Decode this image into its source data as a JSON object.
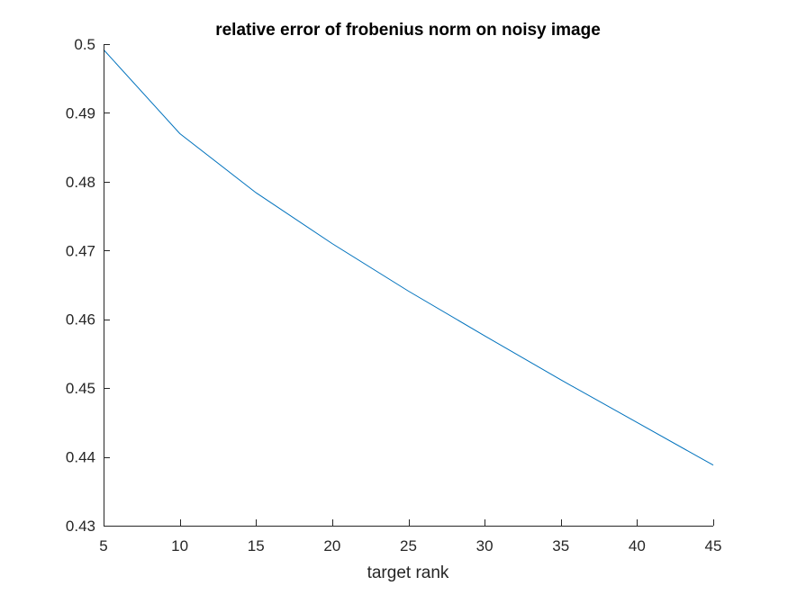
{
  "chart_data": {
    "type": "line",
    "title": "relative error of frobenius norm on noisy image",
    "xlabel": "target rank",
    "ylabel": "",
    "xlim": [
      5,
      45
    ],
    "ylim": [
      0.43,
      0.5
    ],
    "xticks": [
      5,
      10,
      15,
      20,
      25,
      30,
      35,
      40,
      45
    ],
    "xtick_labels": [
      "5",
      "10",
      "15",
      "20",
      "25",
      "30",
      "35",
      "40",
      "45"
    ],
    "yticks": [
      0.43,
      0.44,
      0.45,
      0.46,
      0.47,
      0.48,
      0.49,
      0.5
    ],
    "ytick_labels": [
      "0.43",
      "0.44",
      "0.45",
      "0.46",
      "0.47",
      "0.48",
      "0.49",
      "0.5"
    ],
    "grid": false,
    "legend": "none",
    "series": [
      {
        "color": "#0072BD",
        "x": [
          5,
          10,
          15,
          20,
          25,
          30,
          35,
          40,
          45
        ],
        "y": [
          0.4992,
          0.487,
          0.4784,
          0.471,
          0.4641,
          0.4576,
          0.4512,
          0.445,
          0.4388
        ]
      }
    ]
  }
}
